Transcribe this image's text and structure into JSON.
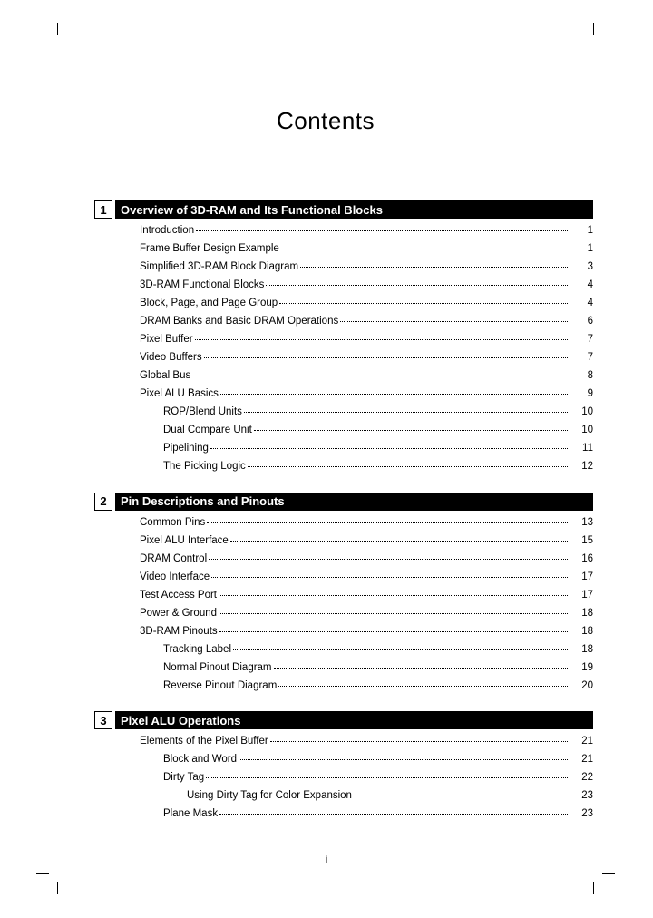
{
  "title": "Contents",
  "page_number": "i",
  "sections": [
    {
      "num": "1",
      "title": "Overview of 3D-RAM and Its Functional Blocks",
      "entries": [
        {
          "label": "Introduction",
          "page": "1",
          "indent": 0
        },
        {
          "label": "Frame Buffer Design Example",
          "page": "1",
          "indent": 0
        },
        {
          "label": "Simplified 3D-RAM Block Diagram",
          "page": "3",
          "indent": 0
        },
        {
          "label": "3D-RAM Functional Blocks",
          "page": "4",
          "indent": 0
        },
        {
          "label": "Block, Page, and Page Group",
          "page": "4",
          "indent": 0
        },
        {
          "label": "DRAM Banks and Basic DRAM Operations",
          "page": "6",
          "indent": 0
        },
        {
          "label": "Pixel Buffer",
          "page": "7",
          "indent": 0
        },
        {
          "label": "Video Buffers",
          "page": "7",
          "indent": 0
        },
        {
          "label": "Global Bus",
          "page": "8",
          "indent": 0
        },
        {
          "label": "Pixel ALU Basics",
          "page": "9",
          "indent": 0
        },
        {
          "label": "ROP/Blend Units",
          "page": "10",
          "indent": 1
        },
        {
          "label": "Dual Compare Unit",
          "page": "10",
          "indent": 1
        },
        {
          "label": "Pipelining",
          "page": "11",
          "indent": 1
        },
        {
          "label": "The Picking Logic",
          "page": "12",
          "indent": 1
        }
      ]
    },
    {
      "num": "2",
      "title": "Pin Descriptions and Pinouts",
      "entries": [
        {
          "label": "Common Pins",
          "page": "13",
          "indent": 0
        },
        {
          "label": "Pixel ALU Interface",
          "page": "15",
          "indent": 0
        },
        {
          "label": "DRAM Control",
          "page": "16",
          "indent": 0
        },
        {
          "label": "Video Interface",
          "page": "17",
          "indent": 0
        },
        {
          "label": "Test Access Port",
          "page": "17",
          "indent": 0
        },
        {
          "label": "Power & Ground",
          "page": "18",
          "indent": 0
        },
        {
          "label": "3D-RAM Pinouts",
          "page": "18",
          "indent": 0
        },
        {
          "label": "Tracking Label",
          "page": "18",
          "indent": 1
        },
        {
          "label": "Normal Pinout Diagram",
          "page": "19",
          "indent": 1
        },
        {
          "label": "Reverse Pinout Diagram",
          "page": "20",
          "indent": 1
        }
      ]
    },
    {
      "num": "3",
      "title": "Pixel ALU Operations",
      "entries": [
        {
          "label": "Elements of the Pixel Buffer",
          "page": "21",
          "indent": 0
        },
        {
          "label": "Block and Word",
          "page": "21",
          "indent": 1
        },
        {
          "label": "Dirty Tag",
          "page": "22",
          "indent": 1
        },
        {
          "label": "Using Dirty Tag for Color Expansion",
          "page": "23",
          "indent": 2
        },
        {
          "label": "Plane Mask",
          "page": "23",
          "indent": 1
        }
      ]
    }
  ]
}
